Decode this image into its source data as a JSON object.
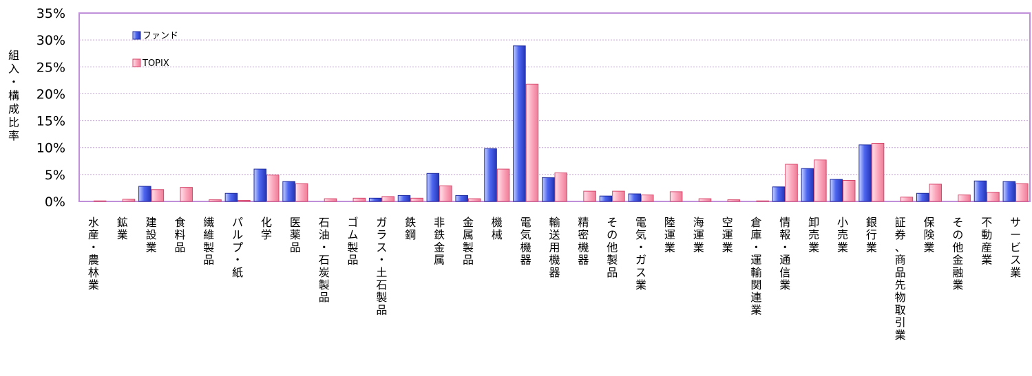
{
  "chart_data": {
    "type": "bar",
    "ylabel": "組入・構成比率",
    "ylim": [
      0,
      35
    ],
    "yticks": [
      "0%",
      "5%",
      "10%",
      "15%",
      "20%",
      "25%",
      "30%",
      "35%"
    ],
    "grid": true,
    "legend_position": "top-left",
    "categories": [
      "水産・農林業",
      "鉱業",
      "建設業",
      "食料品",
      "繊維製品",
      "パルプ・紙",
      "化学",
      "医薬品",
      "石油・石炭製品",
      "ゴム製品",
      "ガラス・土石製品",
      "鉄鋼",
      "非鉄金属",
      "金属製品",
      "機械",
      "電気機器",
      "輸送用機器",
      "精密機器",
      "その他製品",
      "電気・ガス業",
      "陸運業",
      "海運業",
      "空運業",
      "倉庫・運輸関連業",
      "情報・通信業",
      "卸売業",
      "小売業",
      "銀行業",
      "証券、商品先物取引業",
      "保険業",
      "その他金融業",
      "不動産業",
      "サービス業"
    ],
    "series": [
      {
        "name": "ファンド",
        "color": "#3f55e6",
        "values": [
          0,
          0,
          2.8,
          0,
          0,
          1.5,
          6.0,
          3.7,
          0,
          0,
          0.6,
          1.1,
          5.2,
          1.1,
          9.8,
          28.9,
          4.4,
          0,
          1.0,
          1.4,
          0,
          0,
          0,
          0,
          2.7,
          6.1,
          4.1,
          10.5,
          0,
          1.5,
          0,
          3.8,
          3.7
        ]
      },
      {
        "name": "TOPIX",
        "color": "#f58aa4",
        "values": [
          0.1,
          0.4,
          2.2,
          2.6,
          0.3,
          0.2,
          4.9,
          3.3,
          0.5,
          0.6,
          0.9,
          0.6,
          2.9,
          0.5,
          6.0,
          21.8,
          5.3,
          1.9,
          1.9,
          1.2,
          1.8,
          0.5,
          0.3,
          0.1,
          6.9,
          7.7,
          3.9,
          10.8,
          0.8,
          3.2,
          1.2,
          1.7,
          3.3
        ]
      }
    ]
  }
}
